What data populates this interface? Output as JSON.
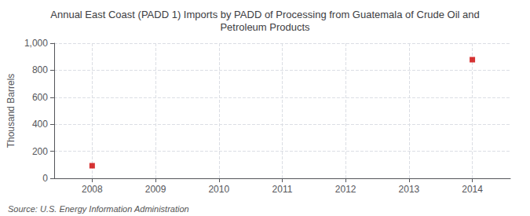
{
  "chart_data": {
    "type": "scatter",
    "title": "Annual East Coast (PADD 1) Imports by PADD of Processing from Guatemala of Crude Oil and\nPetroleum Products",
    "ylabel": "Thousand Barrels",
    "annotations": [
      "Source: U.S. Energy Information Administration"
    ],
    "x": [
      2008,
      2014
    ],
    "values": [
      93,
      878
    ],
    "color": "#cc0000",
    "marker": "square",
    "xlim": [
      2007.4,
      2014.6
    ],
    "xticks": [
      2008,
      2009,
      2010,
      2011,
      2012,
      2013,
      2014
    ],
    "ylim": [
      0,
      1000
    ],
    "yticks": [
      0,
      200,
      400,
      600,
      800,
      {
        "value": 1000,
        "label": "1,000"
      }
    ],
    "grid": true
  }
}
